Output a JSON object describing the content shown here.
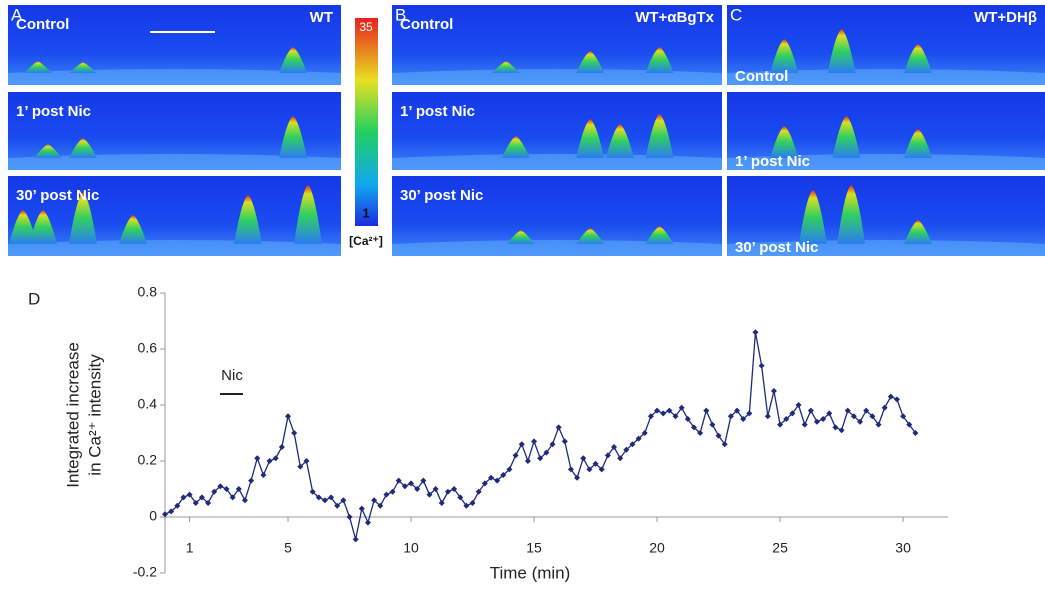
{
  "panels": [
    {
      "label": "A",
      "condition": "WT",
      "rows": [
        "Control",
        "1’ post Nic",
        "30’ post Nic"
      ]
    },
    {
      "label": "B",
      "condition": "WT+αBgTx",
      "rows": [
        "Control",
        "1’ post Nic",
        "30’ post Nic"
      ]
    },
    {
      "label": "C",
      "condition": "WT+DHβ",
      "rows": [
        "Control",
        "1’ post Nic",
        "30’ post Nic"
      ]
    }
  ],
  "colorbar": {
    "max": "35",
    "min": "1",
    "label": "[Ca²⁺]"
  },
  "chart_data": {
    "type": "line",
    "panel_label": "D",
    "y_label": [
      "Integrated increase",
      "in Ca²⁺ intensity"
    ],
    "x_label": "Time (min)",
    "annotation": "Nic",
    "series": [
      {
        "name": "Integrated increase",
        "color": "#1f2a7a",
        "x": [
          0,
          0.25,
          0.5,
          0.75,
          1,
          1.25,
          1.5,
          1.75,
          2,
          2.25,
          2.5,
          2.75,
          3,
          3.25,
          3.5,
          3.75,
          4,
          4.25,
          4.5,
          4.75,
          5,
          5.25,
          5.5,
          5.75,
          6,
          6.25,
          6.5,
          6.75,
          7,
          7.25,
          7.5,
          7.75,
          8,
          8.25,
          8.5,
          8.75,
          9,
          9.25,
          9.5,
          9.75,
          10,
          10.25,
          10.5,
          10.75,
          11,
          11.25,
          11.5,
          11.75,
          12,
          12.25,
          12.5,
          12.75,
          13,
          13.25,
          13.5,
          13.75,
          14,
          14.25,
          14.5,
          14.75,
          15,
          15.25,
          15.5,
          15.75,
          16,
          16.25,
          16.5,
          16.75,
          17,
          17.25,
          17.5,
          17.75,
          18,
          18.25,
          18.5,
          18.75,
          19,
          19.25,
          19.5,
          19.75,
          20,
          20.25,
          20.5,
          20.75,
          21,
          21.25,
          21.5,
          21.75,
          22,
          22.25,
          22.5,
          22.75,
          23,
          23.25,
          23.5,
          23.75,
          24,
          24.25,
          24.5,
          24.75,
          25,
          25.25,
          25.5,
          25.75,
          26,
          26.25,
          26.5,
          26.75,
          27,
          27.25,
          27.5,
          27.75,
          28,
          28.25,
          28.5,
          28.75,
          29,
          29.25,
          29.5,
          29.75,
          30,
          30.25,
          30.5
        ],
        "values": [
          0.01,
          0.02,
          0.04,
          0.07,
          0.08,
          0.05,
          0.07,
          0.05,
          0.09,
          0.11,
          0.1,
          0.07,
          0.1,
          0.06,
          0.13,
          0.21,
          0.15,
          0.2,
          0.21,
          0.25,
          0.36,
          0.3,
          0.18,
          0.2,
          0.09,
          0.07,
          0.06,
          0.07,
          0.04,
          0.06,
          0.0,
          -0.08,
          0.03,
          -0.02,
          0.06,
          0.04,
          0.08,
          0.09,
          0.13,
          0.11,
          0.12,
          0.1,
          0.13,
          0.08,
          0.1,
          0.05,
          0.09,
          0.1,
          0.07,
          0.04,
          0.05,
          0.09,
          0.12,
          0.14,
          0.13,
          0.15,
          0.17,
          0.22,
          0.26,
          0.2,
          0.27,
          0.21,
          0.23,
          0.26,
          0.32,
          0.27,
          0.17,
          0.14,
          0.21,
          0.17,
          0.19,
          0.17,
          0.22,
          0.25,
          0.21,
          0.24,
          0.26,
          0.28,
          0.3,
          0.36,
          0.38,
          0.37,
          0.38,
          0.36,
          0.39,
          0.35,
          0.32,
          0.3,
          0.38,
          0.33,
          0.29,
          0.26,
          0.36,
          0.38,
          0.35,
          0.37,
          0.66,
          0.54,
          0.36,
          0.45,
          0.33,
          0.35,
          0.37,
          0.4,
          0.33,
          0.38,
          0.34,
          0.35,
          0.37,
          0.32,
          0.31,
          0.38,
          0.36,
          0.34,
          0.38,
          0.36,
          0.33,
          0.39,
          0.43,
          0.42,
          0.36,
          0.33,
          0.3
        ]
      }
    ],
    "xlim": [
      0,
      31.5
    ],
    "ylim": [
      -0.2,
      0.8
    ],
    "xticks": [
      1,
      5,
      10,
      15,
      20,
      25,
      30
    ],
    "yticks": [
      -0.2,
      0,
      0.2,
      0.4,
      0.6,
      0.8
    ]
  }
}
